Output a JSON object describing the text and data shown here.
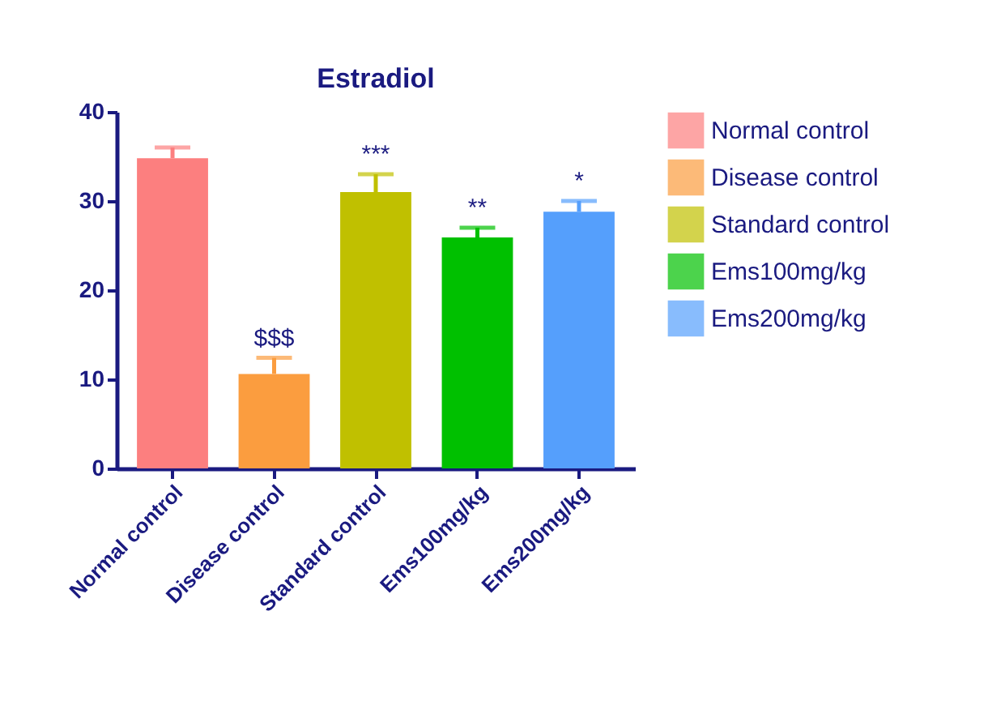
{
  "chart_data": {
    "type": "bar",
    "title": "Estradiol",
    "categories": [
      "Normal control",
      "Disease control",
      "Standard control",
      "Ems100mg/kg",
      "Ems200mg/kg"
    ],
    "series": [
      {
        "name": "Normal control",
        "color": "#fc7f7f",
        "values": [
          34.8,
          null,
          null,
          null,
          null
        ],
        "errors": [
          1.2,
          null,
          null,
          null,
          null
        ]
      },
      {
        "name": "Disease control",
        "color": "#fb9d3f",
        "values": [
          null,
          10.6,
          null,
          null,
          null
        ],
        "errors": [
          null,
          1.8,
          null,
          null,
          null
        ]
      },
      {
        "name": "Standard control",
        "color": "#c0c000",
        "values": [
          null,
          null,
          31,
          null,
          null
        ],
        "errors": [
          null,
          null,
          2,
          null,
          null
        ]
      },
      {
        "name": "Ems100mg/kg",
        "color": "#00c000",
        "values": [
          null,
          null,
          null,
          25.9,
          null
        ],
        "errors": [
          null,
          null,
          null,
          1.1,
          null
        ]
      },
      {
        "name": "Ems200mg/kg",
        "color": "#559ffc",
        "values": [
          null,
          null,
          null,
          null,
          28.8
        ],
        "errors": [
          null,
          null,
          null,
          null,
          1.2
        ]
      }
    ],
    "ylim": [
      0,
      40
    ],
    "yticks": [
      0,
      10,
      20,
      30,
      40
    ],
    "grid": false,
    "legend": "right",
    "annotations": [
      {
        "text": "$$$",
        "x": "Disease control",
        "y": 13.2
      },
      {
        "text": "***",
        "x": "Standard control",
        "y": 33.8
      },
      {
        "text": "**",
        "x": "Ems100mg/kg",
        "y": 27.8
      },
      {
        "text": "*",
        "x": "Ems200mg/kg",
        "y": 30.8
      }
    ]
  }
}
